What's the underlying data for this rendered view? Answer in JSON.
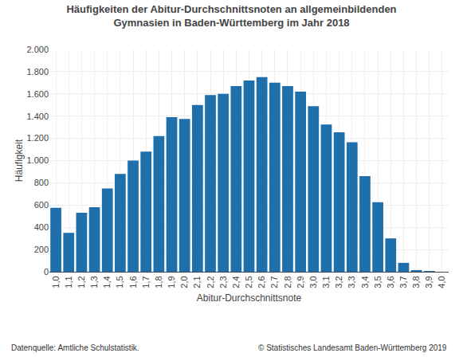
{
  "chart_data": {
    "type": "bar",
    "title": "Häufigkeiten der Abitur-Durchschnittsnoten an allgemeinbildenden\nGymnasien in Baden-Württemberg im Jahr 2018",
    "ylabel": "Häufigkeit",
    "xlabel": "Abitur-Durchschnittsnote",
    "annotations": [
      "Datenquelle: Amtliche Schulstatistik.",
      "© Statistisches Landesamt Baden-Württemberg 2019"
    ],
    "categories": [
      "1,0",
      "1,1",
      "1,2",
      "1,3",
      "1,4",
      "1,5",
      "1,6",
      "1,7",
      "1,8",
      "1,9",
      "2,0",
      "2,1",
      "2,2",
      "2,3",
      "2,4",
      "2,5",
      "2,6",
      "2,7",
      "2,8",
      "2,9",
      "3,0",
      "3,1",
      "3,2",
      "3,3",
      "3,4",
      "3,5",
      "3,6",
      "3,7",
      "3,8",
      "3,9",
      "4,0"
    ],
    "values": [
      575,
      350,
      530,
      580,
      750,
      880,
      1000,
      1080,
      1220,
      1390,
      1375,
      1500,
      1590,
      1600,
      1670,
      1720,
      1750,
      1700,
      1670,
      1620,
      1490,
      1325,
      1255,
      1165,
      860,
      625,
      300,
      80,
      15,
      5,
      0
    ],
    "color": "#1F6FAD",
    "ylim": [
      0,
      2000
    ],
    "yticks": [
      0,
      200,
      400,
      600,
      800,
      {
        "value": 1000,
        "label": "1.000"
      },
      {
        "value": 1200,
        "label": "1.200"
      },
      {
        "value": 1400,
        "label": "1.400"
      },
      {
        "value": 1600,
        "label": "1.600"
      },
      {
        "value": 1800,
        "label": "1.800"
      },
      {
        "value": 2000,
        "label": "2.000"
      }
    ],
    "grid": true
  }
}
